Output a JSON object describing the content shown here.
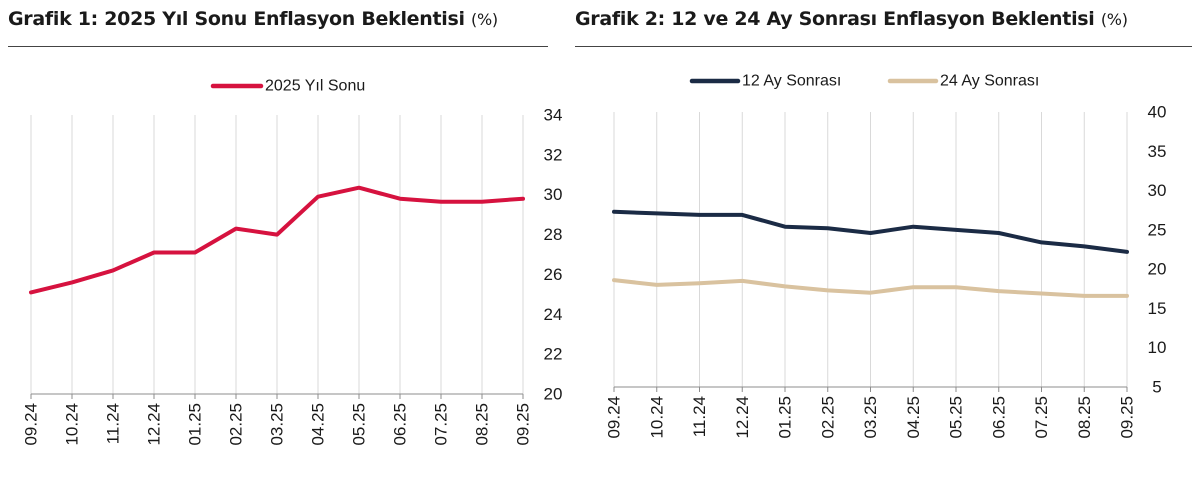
{
  "charts": [
    {
      "title": "Grafik 1: 2025 Yıl Sonu Enflasyon Beklentisi",
      "unit": "(%)"
    },
    {
      "title": "Grafik 2: 12 ve 24 Ay Sonrası Enflasyon Beklentisi",
      "unit": "(%)"
    }
  ],
  "chart_data": [
    {
      "type": "line",
      "categories": [
        "09.24",
        "10.24",
        "11.24",
        "12.24",
        "01.25",
        "02.25",
        "03.25",
        "04.25",
        "05.25",
        "06.25",
        "07.25",
        "08.25",
        "09.25"
      ],
      "series": [
        {
          "name": "2025 Yıl Sonu",
          "color": "#d6123f",
          "values": [
            25.1,
            25.6,
            26.2,
            27.1,
            27.1,
            28.3,
            28.0,
            29.9,
            30.35,
            29.8,
            29.65,
            29.65,
            29.8
          ]
        }
      ],
      "ylim": [
        20,
        34
      ],
      "yticks": [
        "20",
        "22",
        "24",
        "26",
        "28",
        "30",
        "32",
        "34"
      ],
      "yaxis": "right",
      "grid": "vertical",
      "legend": "top"
    },
    {
      "type": "line",
      "categories": [
        "09.24",
        "10.24",
        "11.24",
        "12.24",
        "01.25",
        "02.25",
        "03.25",
        "04.25",
        "05.25",
        "06.25",
        "07.25",
        "08.25",
        "09.25"
      ],
      "series": [
        {
          "name": "12 Ay Sonrası",
          "color": "#1b2b45",
          "values": [
            27.3,
            27.1,
            26.9,
            26.9,
            25.4,
            25.2,
            24.6,
            25.4,
            25.0,
            24.6,
            23.4,
            22.9,
            22.2
          ]
        },
        {
          "name": "24 Ay Sonrası",
          "color": "#d9c29f",
          "values": [
            18.6,
            18.0,
            18.2,
            18.5,
            17.8,
            17.3,
            17.0,
            17.7,
            17.7,
            17.2,
            16.9,
            16.6,
            16.6
          ]
        }
      ],
      "ylim": [
        5,
        40
      ],
      "yticks": [
        "5",
        "10",
        "15",
        "20",
        "25",
        "30",
        "35",
        "40"
      ],
      "yaxis": "right",
      "grid": "vertical",
      "legend": "top"
    }
  ]
}
